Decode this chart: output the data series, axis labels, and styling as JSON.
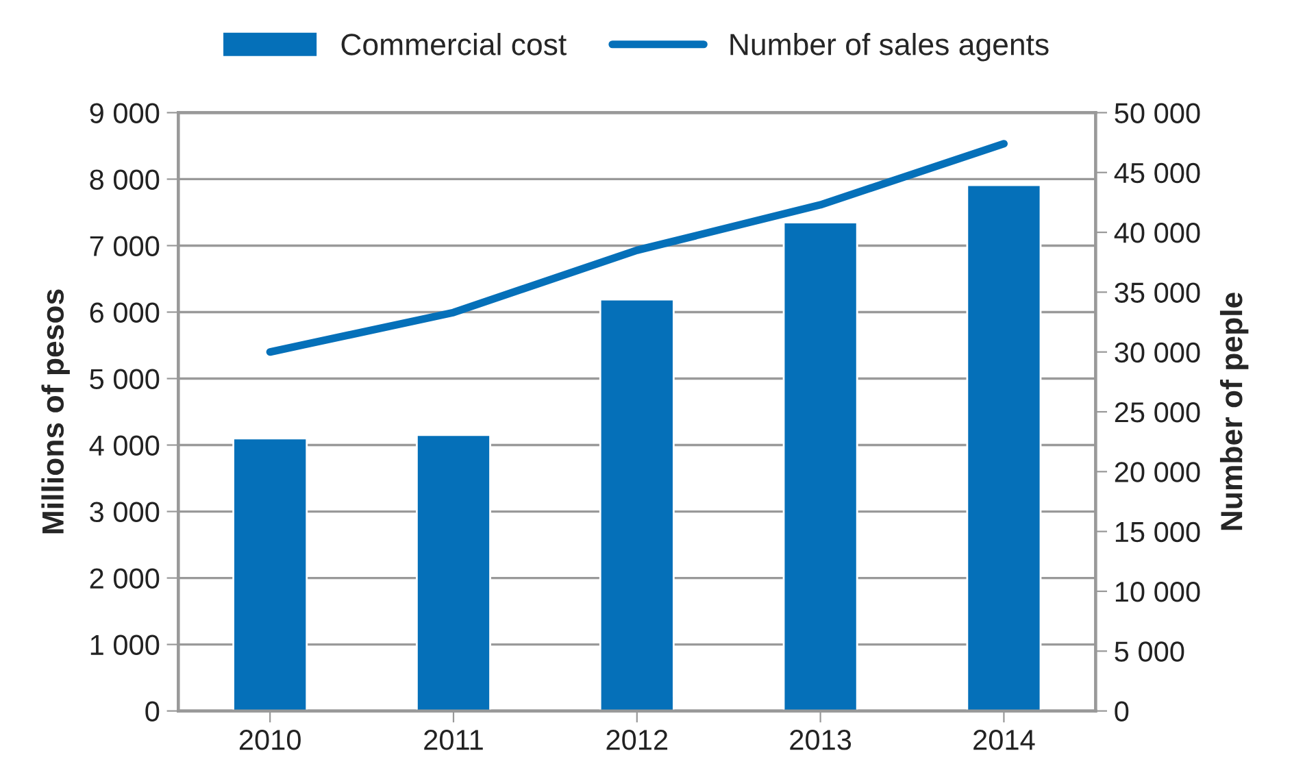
{
  "chart_data": {
    "type": "bar",
    "categories": [
      "2010",
      "2011",
      "2012",
      "2013",
      "2014"
    ],
    "series": [
      {
        "name": "Commercial cost",
        "color": "#0570b9",
        "values": [
          4100,
          4150,
          6190,
          7350,
          7910
        ]
      },
      {
        "name": "Number of sales agents",
        "color": "#0570b9",
        "type": "line",
        "axis": "y2",
        "values": [
          30000,
          33300,
          38500,
          42300,
          47400
        ]
      }
    ],
    "ylabel": "Millions of pesos",
    "y2label": "Number of peple",
    "ylim": [
      0,
      9000
    ],
    "yticks": [
      {
        "value": 0,
        "label": "0"
      },
      {
        "value": 1000,
        "label": "1 000"
      },
      {
        "value": 2000,
        "label": "2 000"
      },
      {
        "value": 3000,
        "label": "3 000"
      },
      {
        "value": 4000,
        "label": "4 000"
      },
      {
        "value": 5000,
        "label": "5 000"
      },
      {
        "value": 6000,
        "label": "6 000"
      },
      {
        "value": 7000,
        "label": "7 000"
      },
      {
        "value": 8000,
        "label": "8 000"
      },
      {
        "value": 9000,
        "label": "9 000"
      }
    ],
    "y2lim": [
      0,
      50000
    ],
    "y2ticks": [
      {
        "value": 0,
        "label": "0"
      },
      {
        "value": 5000,
        "label": "5 000"
      },
      {
        "value": 10000,
        "label": "10 000"
      },
      {
        "value": 15000,
        "label": "15 000"
      },
      {
        "value": 20000,
        "label": "20 000"
      },
      {
        "value": 25000,
        "label": "25 000"
      },
      {
        "value": 30000,
        "label": "30 000"
      },
      {
        "value": 35000,
        "label": "35 000"
      },
      {
        "value": 40000,
        "label": "40 000"
      },
      {
        "value": 45000,
        "label": "45 000"
      },
      {
        "value": 50000,
        "label": "50 000"
      }
    ],
    "grid": "y",
    "legend": "top"
  }
}
